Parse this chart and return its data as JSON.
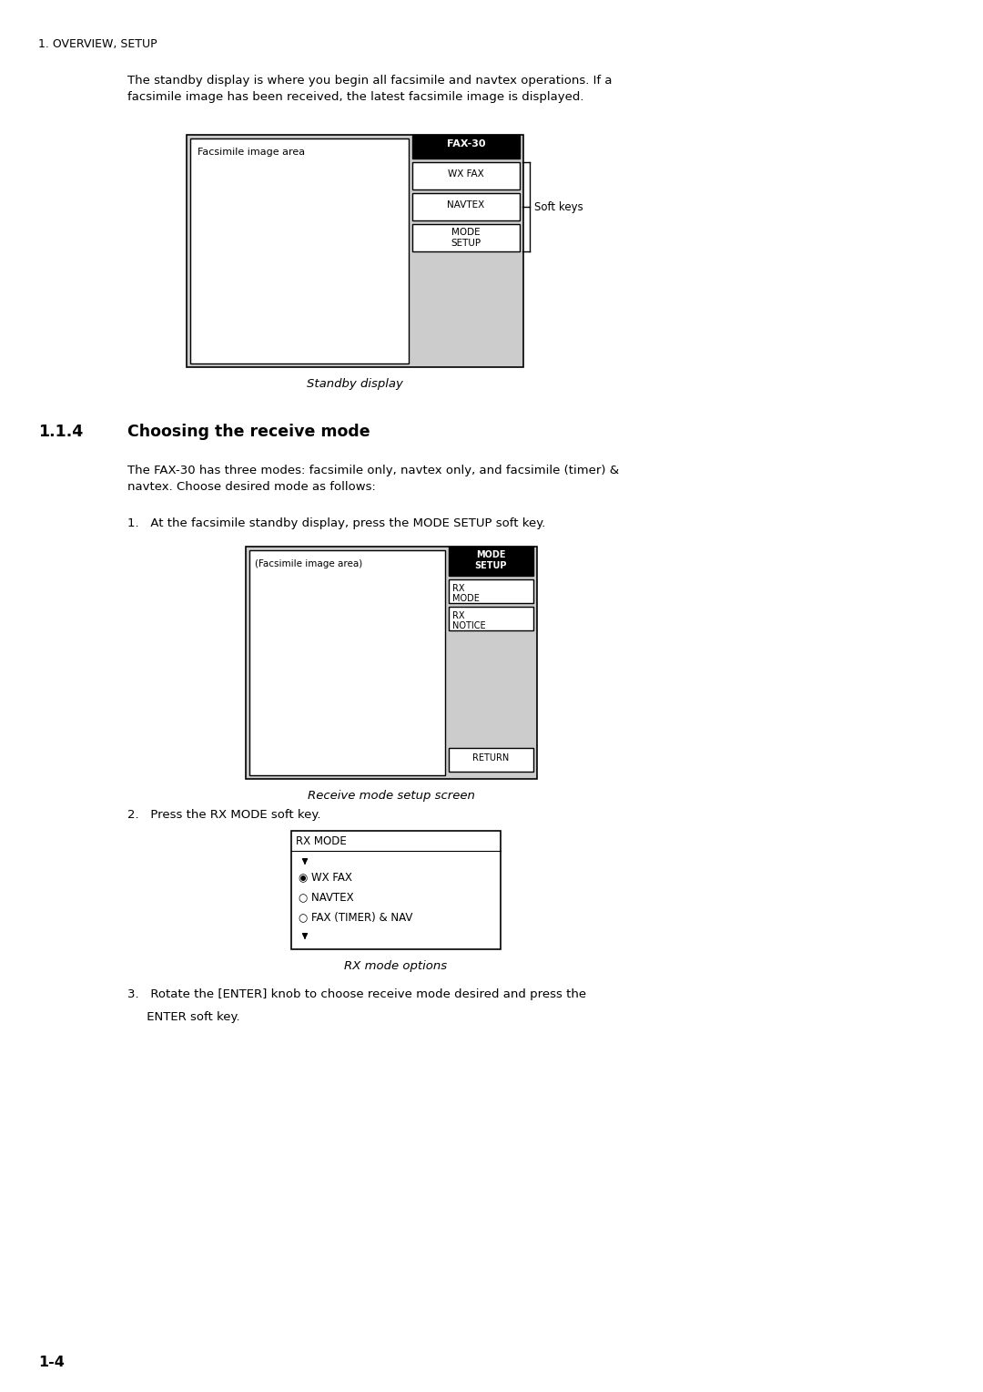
{
  "page_bg": "#ffffff",
  "header_text": "1. OVERVIEW, SETUP",
  "para1_text": "The standby display is where you begin all facsimile and navtex operations. If a\nfacsimile image has been received, the latest facsimile image is displayed.",
  "standby_caption": "Standby display",
  "section_title": "1.1.4    Choosing the receive mode",
  "para2_text": "The FAX-30 has three modes: facsimile only, navtex only, and facsimile (timer) &\nnavtex. Choose desired mode as follows:",
  "step1_text": "1.   At the facsimile standby display, press the MODE SETUP soft key.",
  "receive_caption": "Receive mode setup screen",
  "step2_text": "2.   Press the RX MODE soft key.",
  "rxmode_caption": "RX mode options",
  "step3_line1": "3.   Rotate the [ENTER] knob to choose receive mode desired and press the",
  "step3_line2": "     ENTER soft key.",
  "footer_text": "1-4",
  "body_fontsize": 9.5,
  "caption_fontsize": 9.5,
  "section_fontsize": 12.5
}
